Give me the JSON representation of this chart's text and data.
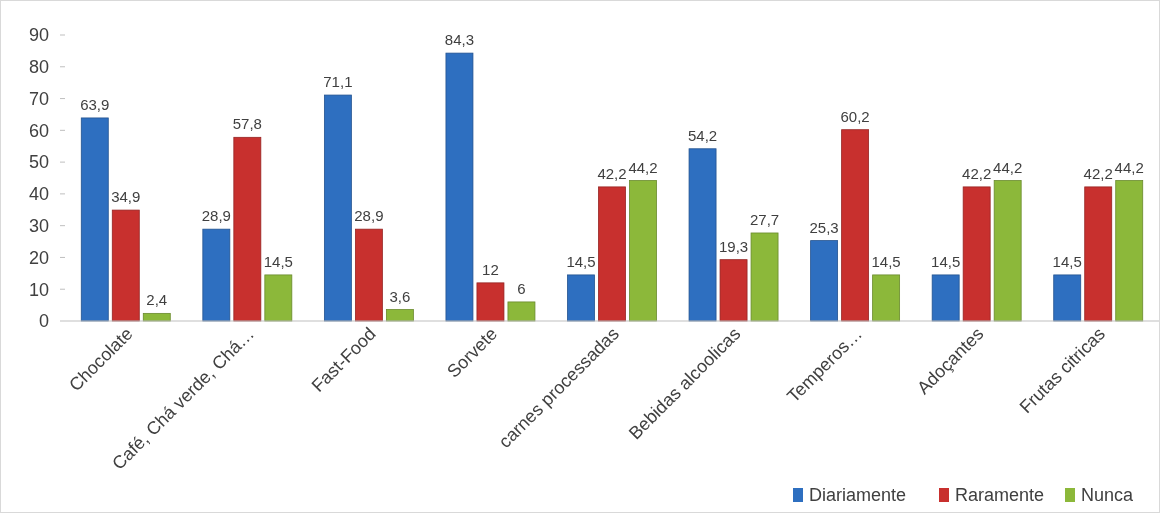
{
  "chart_data": {
    "type": "bar",
    "categories": [
      "Chocolate",
      "Café, Chá verde,  Chá…",
      "Fast-Food",
      "Sorvete",
      "carnes processadas",
      "Bebidas alcoolicas",
      "Temperos…",
      "Adoçantes",
      "Frutas citricas"
    ],
    "series": [
      {
        "name": "Diariamente",
        "color": "#2e6fc0",
        "values": [
          63.9,
          28.9,
          71.1,
          84.3,
          14.5,
          54.2,
          25.3,
          14.5,
          14.5
        ],
        "value_labels": [
          "63,9",
          "28,9",
          "71,1",
          "84,3",
          "14,5",
          "54,2",
          "25,3",
          "14,5",
          "14,5"
        ]
      },
      {
        "name": "Raramente",
        "color": "#c8302e",
        "values": [
          34.9,
          57.8,
          28.9,
          12,
          42.2,
          19.3,
          60.2,
          42.2,
          42.2
        ],
        "value_labels": [
          "34,9",
          "57,8",
          "28,9",
          "12",
          "42,2",
          "19,3",
          "60,2",
          "42,2",
          "42,2"
        ]
      },
      {
        "name": "Nunca",
        "color": "#8cb83a",
        "values": [
          2.4,
          14.5,
          3.6,
          6,
          44.2,
          27.7,
          14.5,
          44.2,
          44.2
        ],
        "value_labels": [
          "2,4",
          "14,5",
          "3,6",
          "6",
          "44,2",
          "27,7",
          "14,5",
          "44,2",
          "44,2"
        ]
      }
    ],
    "ylim": [
      0,
      90
    ],
    "yticks": [
      0,
      10,
      20,
      30,
      40,
      50,
      60,
      70,
      80,
      90
    ],
    "grid": false,
    "legend": "bottom right"
  }
}
